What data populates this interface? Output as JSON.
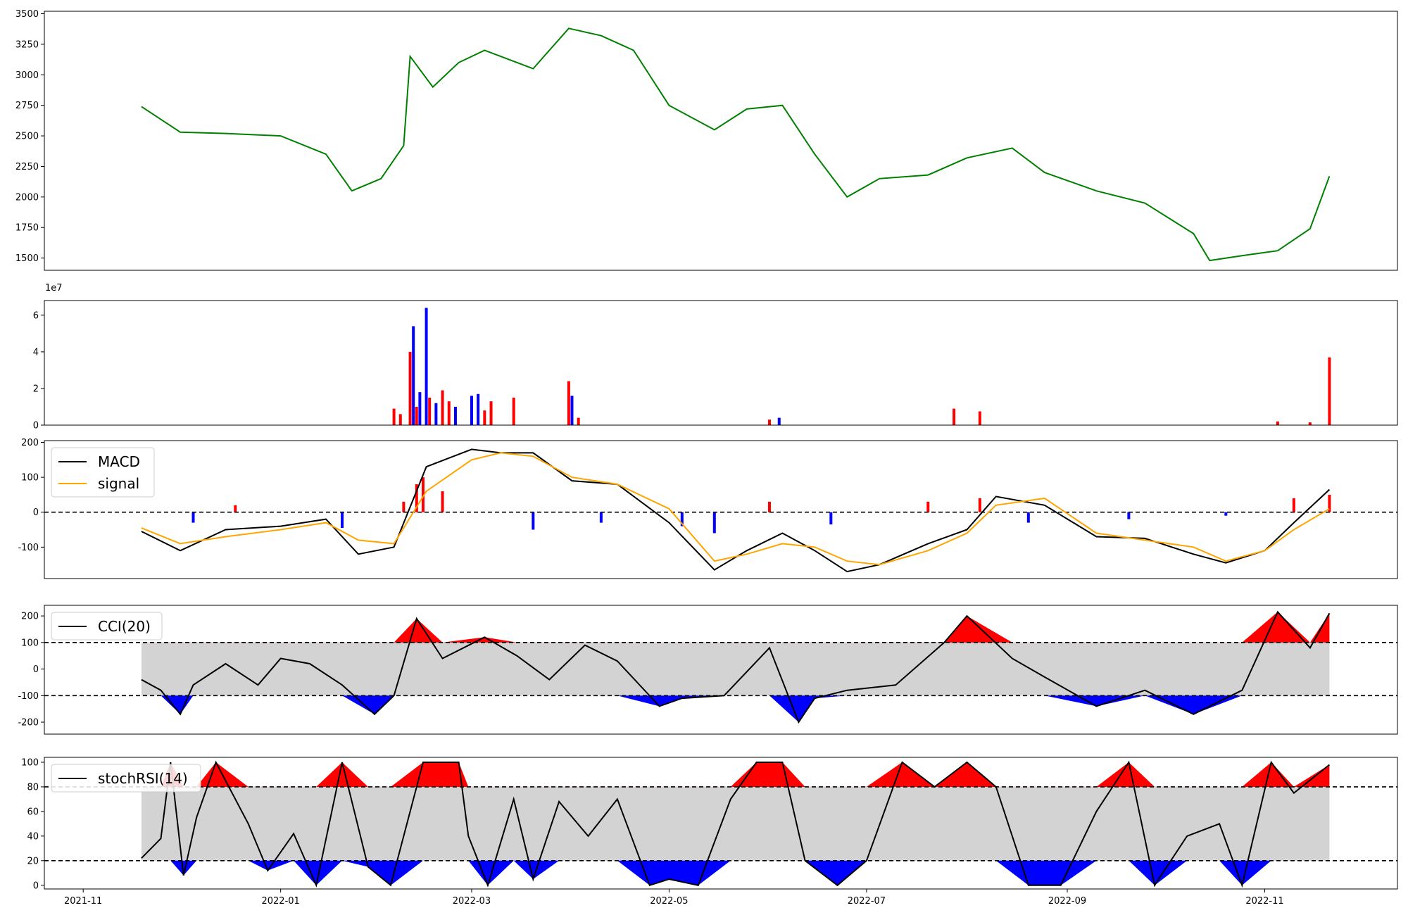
{
  "figure": {
    "title": "",
    "dates": [
      "2021-11",
      "2022-01",
      "2022-03",
      "2022-05",
      "2022-07",
      "2022-09",
      "2022-11"
    ]
  },
  "chart_data": [
    {
      "type": "line",
      "panel": "price",
      "color": "#008000",
      "ylim": [
        1400,
        3520
      ],
      "yticks": [
        "1500",
        "1750",
        "2000",
        "2250",
        "2500",
        "2750",
        "3000",
        "3250",
        "3500"
      ],
      "x": [
        "2021-11-19",
        "2021-12-01",
        "2021-12-15",
        "2022-01-01",
        "2022-01-15",
        "2022-01-23",
        "2022-02-01",
        "2022-02-08",
        "2022-02-10",
        "2022-02-17",
        "2022-02-25",
        "2022-03-05",
        "2022-03-20",
        "2022-03-31",
        "2022-04-10",
        "2022-04-20",
        "2022-05-01",
        "2022-05-15",
        "2022-05-25",
        "2022-06-05",
        "2022-06-15",
        "2022-06-25",
        "2022-07-05",
        "2022-07-20",
        "2022-08-01",
        "2022-08-15",
        "2022-08-25",
        "2022-09-10",
        "2022-09-25",
        "2022-10-10",
        "2022-10-15",
        "2022-10-25",
        "2022-11-05",
        "2022-11-15",
        "2022-11-21"
      ],
      "values": [
        2740,
        2530,
        2520,
        2500,
        2350,
        2050,
        2150,
        2420,
        3150,
        2900,
        3100,
        3200,
        3050,
        3380,
        3320,
        3200,
        2750,
        2550,
        2720,
        2750,
        2350,
        2000,
        2150,
        2180,
        2320,
        2400,
        2200,
        2050,
        1950,
        1700,
        1480,
        1520,
        1560,
        1740,
        2170
      ]
    },
    {
      "type": "bar",
      "panel": "volume",
      "exponent_label": "1e7",
      "ylim": [
        0,
        6.8
      ],
      "yticks": [
        "0",
        "2",
        "4",
        "6"
      ],
      "colors": {
        "up": "#ff0000",
        "down": "#0000ff"
      },
      "x": [
        "2022-02-05",
        "2022-02-07",
        "2022-02-10",
        "2022-02-11",
        "2022-02-12",
        "2022-02-13",
        "2022-02-15",
        "2022-02-16",
        "2022-02-18",
        "2022-02-20",
        "2022-02-22",
        "2022-02-24",
        "2022-03-01",
        "2022-03-03",
        "2022-03-05",
        "2022-03-07",
        "2022-03-14",
        "2022-03-31",
        "2022-04-01",
        "2022-04-03",
        "2022-06-01",
        "2022-06-04",
        "2022-07-28",
        "2022-08-05",
        "2022-11-05",
        "2022-11-15",
        "2022-11-21"
      ],
      "values": [
        0.9,
        0.6,
        4.0,
        5.4,
        1.0,
        1.8,
        6.4,
        1.5,
        1.2,
        1.9,
        1.3,
        1.0,
        1.6,
        1.7,
        0.8,
        1.3,
        1.5,
        2.4,
        1.6,
        0.4,
        0.3,
        0.4,
        0.9,
        0.75,
        0.2,
        0.15,
        3.7
      ],
      "direction": [
        "up",
        "up",
        "up",
        "down",
        "up",
        "down",
        "down",
        "up",
        "down",
        "up",
        "up",
        "down",
        "down",
        "down",
        "up",
        "up",
        "up",
        "up",
        "down",
        "up",
        "up",
        "down",
        "up",
        "up",
        "up",
        "up",
        "up"
      ]
    },
    {
      "type": "line",
      "panel": "macd",
      "ylim": [
        -190,
        205
      ],
      "yticks": [
        "-100",
        "0",
        "100",
        "200"
      ],
      "reference_line": 0,
      "histogram_colors": {
        "positive": "#ff0000",
        "negative": "#0000ff"
      },
      "series": [
        {
          "name": "MACD",
          "color": "#000000",
          "x": [
            "2021-11-19",
            "2021-12-01",
            "2021-12-15",
            "2022-01-01",
            "2022-01-15",
            "2022-01-25",
            "2022-02-05",
            "2022-02-15",
            "2022-03-01",
            "2022-03-10",
            "2022-03-20",
            "2022-04-01",
            "2022-04-15",
            "2022-05-01",
            "2022-05-15",
            "2022-05-25",
            "2022-06-05",
            "2022-06-15",
            "2022-06-25",
            "2022-07-05",
            "2022-07-20",
            "2022-08-01",
            "2022-08-10",
            "2022-08-25",
            "2022-09-10",
            "2022-09-25",
            "2022-10-10",
            "2022-10-20",
            "2022-11-01",
            "2022-11-10",
            "2022-11-21"
          ],
          "values": [
            -55,
            -110,
            -50,
            -40,
            -20,
            -120,
            -100,
            130,
            180,
            170,
            170,
            90,
            80,
            -30,
            -165,
            -110,
            -60,
            -110,
            -170,
            -150,
            -90,
            -50,
            45,
            20,
            -70,
            -75,
            -120,
            -145,
            -110,
            -30,
            65
          ]
        },
        {
          "name": "signal",
          "color": "#ffa500",
          "x": [
            "2021-11-19",
            "2021-12-01",
            "2021-12-15",
            "2022-01-01",
            "2022-01-15",
            "2022-01-25",
            "2022-02-05",
            "2022-02-15",
            "2022-03-01",
            "2022-03-10",
            "2022-03-20",
            "2022-04-01",
            "2022-04-15",
            "2022-05-01",
            "2022-05-15",
            "2022-05-25",
            "2022-06-05",
            "2022-06-15",
            "2022-06-25",
            "2022-07-05",
            "2022-07-20",
            "2022-08-01",
            "2022-08-10",
            "2022-08-25",
            "2022-09-10",
            "2022-09-25",
            "2022-10-10",
            "2022-10-20",
            "2022-11-01",
            "2022-11-10",
            "2022-11-21"
          ],
          "values": [
            -45,
            -90,
            -70,
            -50,
            -30,
            -80,
            -90,
            60,
            150,
            170,
            160,
            100,
            80,
            10,
            -140,
            -120,
            -90,
            -100,
            -140,
            -150,
            -110,
            -60,
            20,
            40,
            -60,
            -80,
            -100,
            -140,
            -110,
            -50,
            10
          ]
        }
      ],
      "histogram": {
        "x": [
          "2021-12-05",
          "2021-12-18",
          "2022-01-20",
          "2022-02-08",
          "2022-02-12",
          "2022-02-14",
          "2022-02-20",
          "2022-03-20",
          "2022-04-10",
          "2022-05-05",
          "2022-05-15",
          "2022-06-01",
          "2022-06-20",
          "2022-07-20",
          "2022-08-05",
          "2022-08-20",
          "2022-09-20",
          "2022-10-20",
          "2022-11-10",
          "2022-11-21"
        ],
        "values": [
          -30,
          20,
          -45,
          30,
          80,
          100,
          60,
          -50,
          -30,
          -40,
          -60,
          30,
          -35,
          30,
          40,
          -30,
          -20,
          -10,
          40,
          50
        ]
      }
    },
    {
      "type": "line",
      "panel": "cci",
      "ylim": [
        -245,
        240
      ],
      "yticks": [
        "-200",
        "-100",
        "0",
        "100",
        "200"
      ],
      "thresholds": [
        100,
        -100
      ],
      "band_color": "#d3d3d3",
      "fill_colors": {
        "above": "#ff0000",
        "below": "#0000ff"
      },
      "series": [
        {
          "name": "CCI(20)",
          "color": "#000000",
          "x": [
            "2021-11-19",
            "2021-11-25",
            "2021-12-01",
            "2021-12-05",
            "2021-12-15",
            "2021-12-25",
            "2022-01-01",
            "2022-01-10",
            "2022-01-20",
            "2022-01-30",
            "2022-02-05",
            "2022-02-12",
            "2022-02-20",
            "2022-03-05",
            "2022-03-15",
            "2022-03-25",
            "2022-04-05",
            "2022-04-15",
            "2022-04-28",
            "2022-05-05",
            "2022-05-18",
            "2022-06-01",
            "2022-06-10",
            "2022-06-15",
            "2022-06-25",
            "2022-07-10",
            "2022-07-25",
            "2022-08-01",
            "2022-08-15",
            "2022-08-25",
            "2022-09-10",
            "2022-09-25",
            "2022-10-10",
            "2022-10-25",
            "2022-11-05",
            "2022-11-15",
            "2022-11-21"
          ],
          "values": [
            -40,
            -80,
            -170,
            -60,
            20,
            -60,
            40,
            20,
            -60,
            -170,
            -100,
            190,
            40,
            120,
            50,
            -40,
            90,
            30,
            -140,
            -110,
            -100,
            80,
            -200,
            -110,
            -80,
            -60,
            100,
            200,
            40,
            -30,
            -140,
            -80,
            -170,
            -80,
            215,
            80,
            210
          ]
        }
      ]
    },
    {
      "type": "line",
      "panel": "stochrsi",
      "ylim": [
        -3,
        104
      ],
      "yticks": [
        "0",
        "20",
        "40",
        "60",
        "80",
        "100"
      ],
      "thresholds": [
        80,
        20
      ],
      "band_color": "#d3d3d3",
      "fill_colors": {
        "above": "#ff0000",
        "below": "#0000ff"
      },
      "series": [
        {
          "name": "stochRSI(14)",
          "color": "#000000",
          "x": [
            "2021-11-19",
            "2021-11-25",
            "2021-11-28",
            "2021-12-02",
            "2021-12-06",
            "2021-12-12",
            "2021-12-22",
            "2021-12-28",
            "2022-01-05",
            "2022-01-12",
            "2022-01-20",
            "2022-01-28",
            "2022-02-04",
            "2022-02-14",
            "2022-02-25",
            "2022-02-28",
            "2022-03-06",
            "2022-03-14",
            "2022-03-20",
            "2022-03-28",
            "2022-04-06",
            "2022-04-15",
            "2022-04-25",
            "2022-05-01",
            "2022-05-10",
            "2022-05-20",
            "2022-05-28",
            "2022-06-05",
            "2022-06-12",
            "2022-06-22",
            "2022-07-01",
            "2022-07-12",
            "2022-07-22",
            "2022-08-01",
            "2022-08-10",
            "2022-08-20",
            "2022-08-30",
            "2022-09-10",
            "2022-09-20",
            "2022-09-28",
            "2022-10-08",
            "2022-10-18",
            "2022-10-25",
            "2022-11-03",
            "2022-11-10",
            "2022-11-21"
          ],
          "values": [
            22,
            38,
            100,
            8,
            55,
            100,
            50,
            12,
            42,
            0,
            100,
            15,
            0,
            100,
            100,
            40,
            0,
            70,
            5,
            68,
            40,
            70,
            0,
            5,
            0,
            70,
            100,
            100,
            20,
            0,
            20,
            100,
            80,
            100,
            80,
            0,
            0,
            60,
            100,
            0,
            40,
            50,
            0,
            100,
            75,
            98
          ]
        }
      ]
    }
  ]
}
